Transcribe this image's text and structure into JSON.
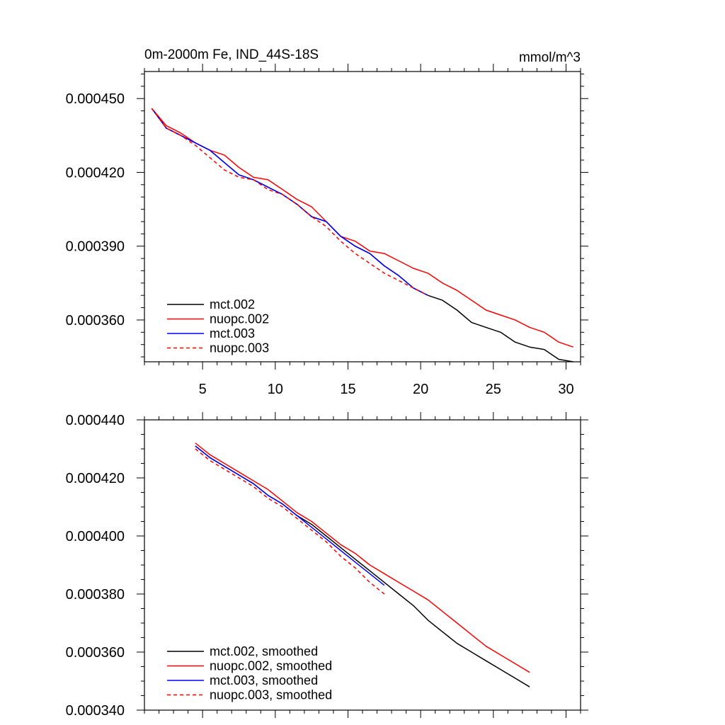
{
  "chart_data": [
    {
      "type": "line",
      "title": "0m-2000m Fe, IND_44S-18S",
      "units": "mmol/m^3",
      "xlim": [
        1,
        31
      ],
      "ylim": [
        0.000343,
        0.000461
      ],
      "xticks": [
        5,
        10,
        15,
        20,
        25,
        30
      ],
      "xtick_labels": [
        "5",
        "10",
        "15",
        "20",
        "25",
        "30"
      ],
      "yticks": [
        0.00036,
        0.00039,
        0.00042,
        0.00045
      ],
      "ytick_labels": [
        "0.000360",
        "0.000390",
        "0.000420",
        "0.000450"
      ],
      "legend_position": "bottom-left",
      "series": [
        {
          "name": "mct.002",
          "color": "#000000",
          "dash": "solid",
          "x": [
            1.5,
            2.5,
            3.5,
            4.5,
            5.5,
            6.5,
            7.5,
            8.5,
            9.5,
            10.5,
            11.5,
            12.5,
            13.5,
            14.5,
            15.5,
            16.5,
            17.5,
            18.5,
            19.5,
            20.5,
            21.5,
            22.5,
            23.5,
            24.5,
            25.5,
            26.5,
            27.5,
            28.5,
            29.5,
            30.5
          ],
          "y": [
            0.000446,
            0.000438,
            0.000435,
            0.000432,
            0.000429,
            0.000424,
            0.000419,
            0.000417,
            0.000414,
            0.000411,
            0.000407,
            0.000402,
            0.0004,
            0.000394,
            0.00039,
            0.000387,
            0.000382,
            0.000378,
            0.000373,
            0.00037,
            0.000368,
            0.000364,
            0.000359,
            0.000357,
            0.000355,
            0.000351,
            0.000349,
            0.000348,
            0.000344,
            0.000343
          ]
        },
        {
          "name": "nuopc.002",
          "color": "#ff0000",
          "dash": "solid",
          "x": [
            1.5,
            2.5,
            3.5,
            4.5,
            5.5,
            6.5,
            7.5,
            8.5,
            9.5,
            10.5,
            11.5,
            12.5,
            13.5,
            14.5,
            15.5,
            16.5,
            17.5,
            18.5,
            19.5,
            20.5,
            21.5,
            22.5,
            23.5,
            24.5,
            25.5,
            26.5,
            27.5,
            28.5,
            29.5,
            30.5
          ],
          "y": [
            0.000446,
            0.000439,
            0.000436,
            0.000432,
            0.000429,
            0.000427,
            0.000422,
            0.000418,
            0.000417,
            0.000413,
            0.000409,
            0.000406,
            0.0004,
            0.000394,
            0.000392,
            0.000388,
            0.000387,
            0.000384,
            0.000381,
            0.000379,
            0.000375,
            0.000372,
            0.000368,
            0.000364,
            0.000362,
            0.00036,
            0.000357,
            0.000355,
            0.000351,
            0.000349
          ]
        },
        {
          "name": "mct.003",
          "color": "#0000ff",
          "dash": "solid",
          "x": [
            1.5,
            2.5,
            3.5,
            4.5,
            5.5,
            6.5,
            7.5,
            8.5,
            9.5,
            10.5,
            11.5,
            12.5,
            13.5,
            14.5,
            15.5,
            16.5,
            17.5,
            18.5,
            19.5,
            20.5
          ],
          "y": [
            0.000446,
            0.000438,
            0.000435,
            0.000432,
            0.000429,
            0.000424,
            0.000419,
            0.000417,
            0.000414,
            0.000411,
            0.000407,
            0.000402,
            0.0004,
            0.000394,
            0.00039,
            0.000387,
            0.000382,
            0.000378,
            0.000373,
            0.00037
          ]
        },
        {
          "name": "nuopc.003",
          "color": "#ff0000",
          "dash": "dashed",
          "x": [
            1.5,
            2.5,
            3.5,
            4.5,
            5.5,
            6.5,
            7.5,
            8.5,
            9.5,
            10.5,
            11.5,
            12.5,
            13.5,
            14.5,
            15.5,
            16.5,
            17.5,
            18.5,
            19.5,
            20.5
          ],
          "y": [
            0.000446,
            0.000438,
            0.000435,
            0.000431,
            0.000426,
            0.000421,
            0.000418,
            0.000417,
            0.000413,
            0.000411,
            0.000407,
            0.000402,
            0.000398,
            0.000392,
            0.000387,
            0.000383,
            0.000379,
            0.000376,
            0.000373,
            0.00037
          ]
        }
      ]
    },
    {
      "type": "line",
      "xlim": [
        1,
        31
      ],
      "ylim": [
        0.00034,
        0.00044
      ],
      "yticks": [
        0.00034,
        0.00036,
        0.00038,
        0.0004,
        0.00042,
        0.00044
      ],
      "ytick_labels": [
        "0.000340",
        "0.000360",
        "0.000380",
        "0.000400",
        "0.000420",
        "0.000440"
      ],
      "legend_position": "bottom-left",
      "series": [
        {
          "name": "mct.002, smoothed",
          "color": "#000000",
          "dash": "solid",
          "x": [
            4.5,
            5.5,
            6.5,
            7.5,
            8.5,
            9.5,
            10.5,
            11.5,
            12.5,
            13.5,
            14.5,
            15.5,
            16.5,
            17.5,
            18.5,
            19.5,
            20.5,
            21.5,
            22.5,
            23.5,
            24.5,
            25.5,
            26.5,
            27.5
          ],
          "y": [
            0.000431,
            0.000427,
            0.000424,
            0.000421,
            0.000418,
            0.000414,
            0.000411,
            0.000407,
            0.000404,
            0.0004,
            0.000396,
            0.000392,
            0.000388,
            0.000384,
            0.00038,
            0.000376,
            0.000371,
            0.000367,
            0.000363,
            0.00036,
            0.000357,
            0.000354,
            0.000351,
            0.000348
          ]
        },
        {
          "name": "nuopc.002, smoothed",
          "color": "#ff0000",
          "dash": "solid",
          "x": [
            4.5,
            5.5,
            6.5,
            7.5,
            8.5,
            9.5,
            10.5,
            11.5,
            12.5,
            13.5,
            14.5,
            15.5,
            16.5,
            17.5,
            18.5,
            19.5,
            20.5,
            21.5,
            22.5,
            23.5,
            24.5,
            25.5,
            26.5,
            27.5
          ],
          "y": [
            0.000432,
            0.000428,
            0.000425,
            0.000422,
            0.000419,
            0.000416,
            0.000412,
            0.000408,
            0.000405,
            0.000401,
            0.000397,
            0.000394,
            0.00039,
            0.000387,
            0.000384,
            0.000381,
            0.000378,
            0.000374,
            0.00037,
            0.000366,
            0.000362,
            0.000359,
            0.000356,
            0.000353
          ]
        },
        {
          "name": "mct.003, smoothed",
          "color": "#0000ff",
          "dash": "solid",
          "x": [
            4.5,
            5.5,
            6.5,
            7.5,
            8.5,
            9.5,
            10.5,
            11.5,
            12.5,
            13.5,
            14.5,
            15.5,
            16.5,
            17.5
          ],
          "y": [
            0.000431,
            0.000427,
            0.000424,
            0.000421,
            0.000418,
            0.000414,
            0.000411,
            0.000407,
            0.000403,
            0.000399,
            0.000395,
            0.000391,
            0.000387,
            0.000383
          ]
        },
        {
          "name": "nuopc.003, smoothed",
          "color": "#ff0000",
          "dash": "dashed",
          "x": [
            4.5,
            5.5,
            6.5,
            7.5,
            8.5,
            9.5,
            10.5,
            11.5,
            12.5,
            13.5,
            14.5,
            15.5,
            16.5,
            17.5
          ],
          "y": [
            0.00043,
            0.000426,
            0.000423,
            0.00042,
            0.000417,
            0.000413,
            0.00041,
            0.000406,
            0.000402,
            0.000398,
            0.000393,
            0.000389,
            0.000384,
            0.00038
          ]
        }
      ]
    }
  ]
}
